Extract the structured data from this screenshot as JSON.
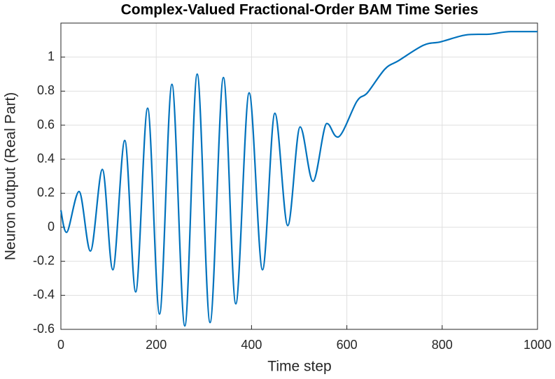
{
  "chart_data": {
    "type": "line",
    "title": "Complex-Valued Fractional-Order BAM Time Series",
    "x_label": "Time step",
    "y_label": "Neuron output (Real Part)",
    "xlim": [
      0,
      1000
    ],
    "ylim": [
      -0.6,
      1.2
    ],
    "xticks": [
      0,
      200,
      400,
      600,
      800,
      1000
    ],
    "yticks": [
      -0.6,
      -0.4,
      -0.2,
      0,
      0.2,
      0.4,
      0.6,
      0.8,
      1
    ],
    "grid": true,
    "x": [
      0,
      12,
      38,
      62,
      87,
      109,
      134,
      157,
      182,
      207,
      233,
      260,
      286,
      313,
      341,
      367,
      395,
      423,
      449,
      476,
      502,
      529,
      558,
      581,
      621,
      643,
      680,
      709,
      761,
      797,
      849,
      900,
      944,
      1000
    ],
    "series": [
      {
        "color": "#0072bd",
        "values": [
          0.1,
          -0.03,
          0.21,
          -0.14,
          0.34,
          -0.25,
          0.51,
          -0.38,
          0.7,
          -0.51,
          0.84,
          -0.58,
          0.9,
          -0.56,
          0.88,
          -0.45,
          0.79,
          -0.25,
          0.67,
          0.01,
          0.59,
          0.27,
          0.61,
          0.53,
          0.74,
          0.79,
          0.93,
          0.98,
          1.07,
          1.09,
          1.13,
          1.135,
          1.15,
          1.15
        ]
      }
    ]
  }
}
